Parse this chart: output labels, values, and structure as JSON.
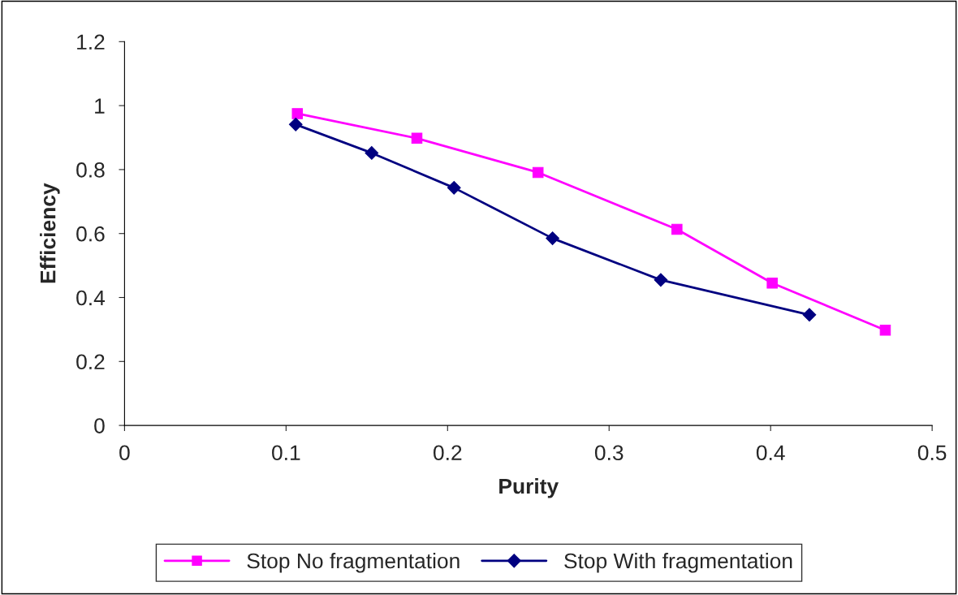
{
  "chart_data": {
    "type": "line",
    "xlabel": "Purity",
    "ylabel": "Efficiency",
    "xlim": [
      0,
      0.5
    ],
    "xticks": [
      0,
      0.1,
      0.2,
      0.3,
      0.4,
      0.5
    ],
    "ylim": [
      0,
      1.2
    ],
    "yticks": [
      0,
      0.2,
      0.4,
      0.6,
      0.8,
      1,
      1.2
    ],
    "grid": false,
    "legend": "bottom",
    "line_style": "solid",
    "series": [
      {
        "name": "Stop No fragmentation",
        "color": "#ff00ff",
        "marker": "square",
        "x": [
          0.107,
          0.181,
          0.256,
          0.342,
          0.401,
          0.471
        ],
        "values": [
          0.975,
          0.898,
          0.791,
          0.613,
          0.445,
          0.298
        ]
      },
      {
        "name": "Stop With fragmentation",
        "color": "#000080",
        "marker": "diamond",
        "x": [
          0.106,
          0.153,
          0.204,
          0.265,
          0.332,
          0.424
        ],
        "values": [
          0.941,
          0.852,
          0.743,
          0.585,
          0.455,
          0.346
        ]
      }
    ]
  }
}
